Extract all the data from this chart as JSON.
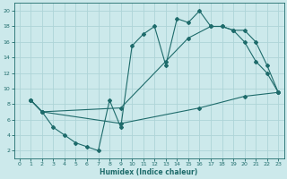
{
  "xlabel": "Humidex (Indice chaleur)",
  "bg_color": "#cce9eb",
  "grid_color": "#aed4d7",
  "line_color": "#1e6b6b",
  "xlim": [
    -0.5,
    23.5
  ],
  "ylim": [
    1.0,
    21.0
  ],
  "xticks": [
    0,
    1,
    2,
    3,
    4,
    5,
    6,
    7,
    8,
    9,
    10,
    11,
    12,
    13,
    14,
    15,
    16,
    17,
    18,
    19,
    20,
    21,
    22,
    23
  ],
  "yticks": [
    2,
    4,
    6,
    8,
    10,
    12,
    14,
    16,
    18,
    20
  ],
  "line1_x": [
    1,
    2,
    3,
    4,
    5,
    6,
    7,
    8,
    9,
    10,
    11,
    12,
    13,
    14,
    15,
    16,
    17,
    18,
    19,
    20,
    21,
    22,
    23
  ],
  "line1_y": [
    8.5,
    7.0,
    5.0,
    4.0,
    3.0,
    2.5,
    2.0,
    8.5,
    5.0,
    15.5,
    17.0,
    18.0,
    13.0,
    19.0,
    18.5,
    20.0,
    18.0,
    18.0,
    17.5,
    17.5,
    16.0,
    13.0,
    9.5
  ],
  "line2_x": [
    1,
    2,
    9,
    13,
    15,
    17,
    18,
    19,
    20,
    21,
    22,
    23
  ],
  "line2_y": [
    8.5,
    7.0,
    7.5,
    13.5,
    16.5,
    18.0,
    18.0,
    17.5,
    16.0,
    13.5,
    12.0,
    9.5
  ],
  "line3_x": [
    1,
    2,
    9,
    16,
    20,
    23
  ],
  "line3_y": [
    8.5,
    7.0,
    5.5,
    7.5,
    9.0,
    9.5
  ]
}
